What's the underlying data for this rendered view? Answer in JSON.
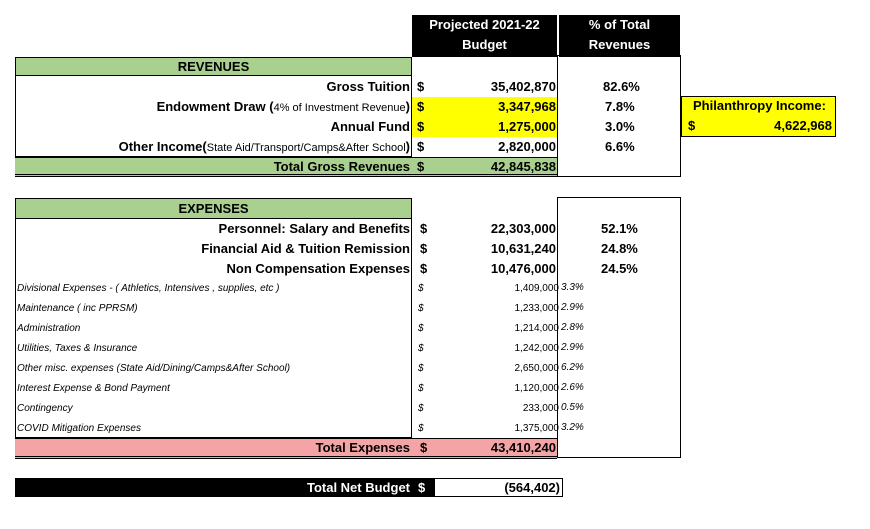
{
  "header": {
    "budget_col_line1": "Projected 2021-22",
    "budget_col_line2": "Budget",
    "pct_col_line1": "% of Total",
    "pct_col_line2": "Revenues"
  },
  "revenues": {
    "section_title": "REVENUES",
    "rows": [
      {
        "label": "Gross Tuition",
        "label_small": "",
        "dollar": "$",
        "value": "35,402,870",
        "pct": "82.6%"
      },
      {
        "label": "Endowment Draw (",
        "label_small": "4% of Investment Revenue",
        "label_end": ")",
        "dollar": "$",
        "value": "3,347,968",
        "pct": "7.8%"
      },
      {
        "label": "Annual Fund",
        "label_small": "",
        "dollar": "$",
        "value": "1,275,000",
        "pct": "3.0%"
      },
      {
        "label": "Other Income(",
        "label_small": "State Aid/Transport/Camps&After School",
        "label_end": ")",
        "dollar": "$",
        "value": "2,820,000",
        "pct": "6.6%"
      }
    ],
    "total_label": "Total Gross Revenues",
    "total_dollar": "$",
    "total_value": "42,845,838"
  },
  "philanthropy": {
    "label": "Philanthropy Income:",
    "dollar": "$",
    "value": "4,622,968"
  },
  "expenses": {
    "section_title": "EXPENSES",
    "main_rows": [
      {
        "label": "Personnel: Salary and Benefits",
        "dollar": "$",
        "value": "22,303,000",
        "pct": "52.1%"
      },
      {
        "label": "Financial Aid & Tuition Remission",
        "dollar": "$",
        "value": "10,631,240",
        "pct": "24.8%"
      },
      {
        "label": "Non Compensation Expenses",
        "dollar": "$",
        "value": "10,476,000",
        "pct": "24.5%"
      }
    ],
    "sub_rows": [
      {
        "label": "Divisional Expenses - ( Athletics, Intensives , supplies, etc )",
        "dollar": "$",
        "value": "1,409,000",
        "pct": "3.3%"
      },
      {
        "label": "Maintenance ( inc PPRSM)",
        "dollar": "$",
        "value": "1,233,000",
        "pct": "2.9%"
      },
      {
        "label": "Administration",
        "dollar": "$",
        "value": "1,214,000",
        "pct": "2.8%"
      },
      {
        "label": "Utilities, Taxes & Insurance",
        "dollar": "$",
        "value": "1,242,000",
        "pct": "2.9%"
      },
      {
        "label": "Other misc. expenses (State Aid/Dining/Camps&After School)",
        "dollar": "$",
        "value": "2,650,000",
        "pct": "6.2%"
      },
      {
        "label": "Interest Expense & Bond Payment",
        "dollar": "$",
        "value": "1,120,000",
        "pct": "2.6%"
      },
      {
        "label": "Contingency",
        "dollar": "$",
        "value": "233,000",
        "pct": "0.5%"
      },
      {
        "label": "COVID Mitigation Expenses",
        "dollar": "$",
        "value": "1,375,000",
        "pct": "3.2%"
      }
    ],
    "total_label": "Total Expenses",
    "total_dollar": "$",
    "total_value": "43,410,240"
  },
  "net": {
    "label": "Total Net Budget",
    "dollar": "$",
    "value": "(564,402)"
  }
}
